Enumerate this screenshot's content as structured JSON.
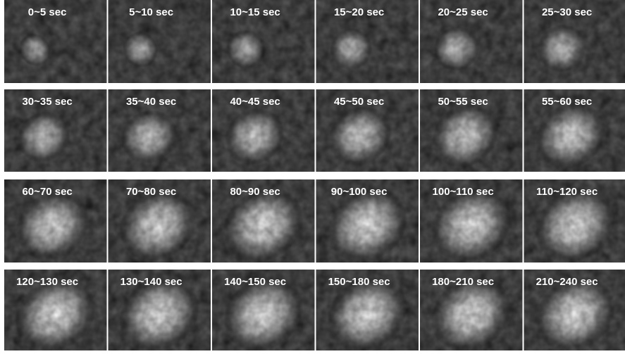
{
  "rows": [
    [
      "0~5 sec",
      "5~10 sec",
      "10~15 sec",
      "15~20 sec",
      "20~25 sec",
      "25~30 sec"
    ],
    [
      "30~35 sec",
      "35~40 sec",
      "40~45 sec",
      "45~50 sec",
      "50~55 sec",
      "55~60 sec"
    ],
    [
      "60~70 sec",
      "70~80 sec",
      "80~90 sec",
      "90~100 sec",
      "100~110 sec",
      "110~120 sec"
    ],
    [
      "120~130 sec",
      "130~140 sec",
      "140~150 sec",
      "150~180 sec",
      "180~210 sec",
      "210~240 sec"
    ]
  ]
}
